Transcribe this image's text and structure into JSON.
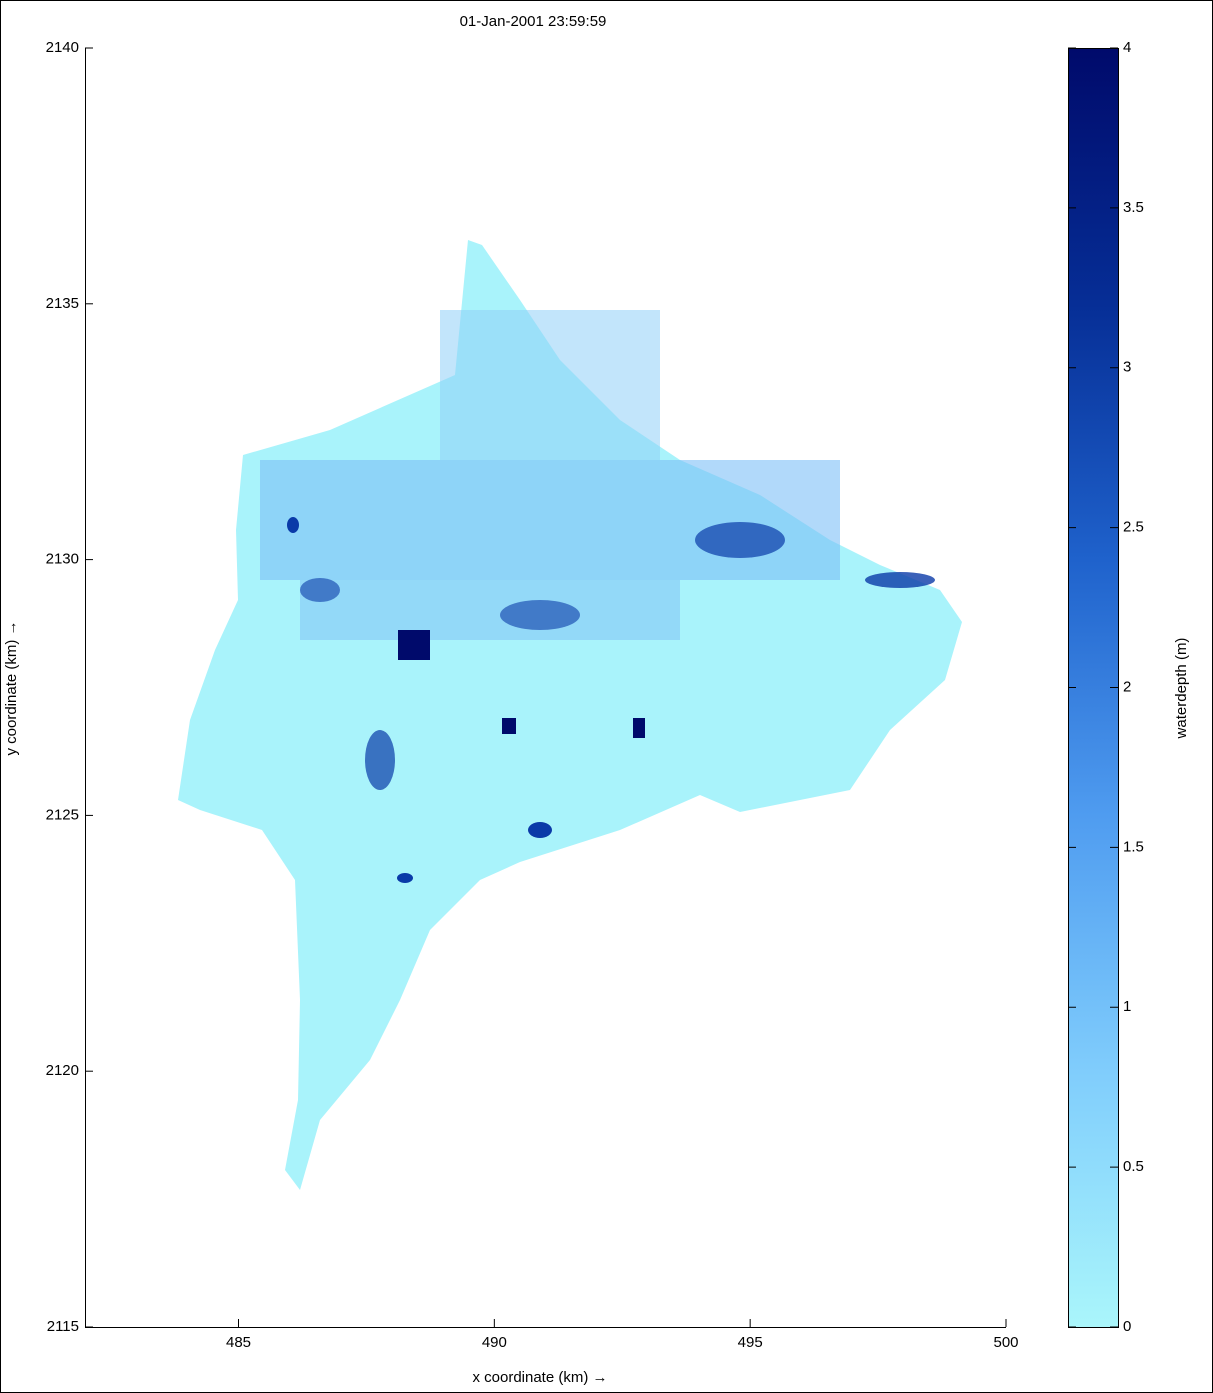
{
  "chart_data": {
    "type": "map",
    "title": "01-Jan-2001 23:59:59",
    "xlabel": "x coordinate (km) →",
    "ylabel": "y coordinate (km) →",
    "xlim": [
      482,
      500
    ],
    "xticks": [
      485,
      490,
      495,
      500
    ],
    "ylim": [
      2115,
      2140
    ],
    "yticks": [
      2115,
      2120,
      2125,
      2130,
      2135,
      2140
    ],
    "colorbar": {
      "label": "waterdepth (m)",
      "lim": [
        0,
        4
      ],
      "ticks": [
        0,
        0.5,
        1,
        1.5,
        2,
        2.5,
        3,
        3.5,
        4
      ],
      "colormap": [
        "#aaf6fb",
        "#80cdfc",
        "#4f9cf0",
        "#1f62cc",
        "#062e96",
        "#000a6b"
      ]
    }
  }
}
